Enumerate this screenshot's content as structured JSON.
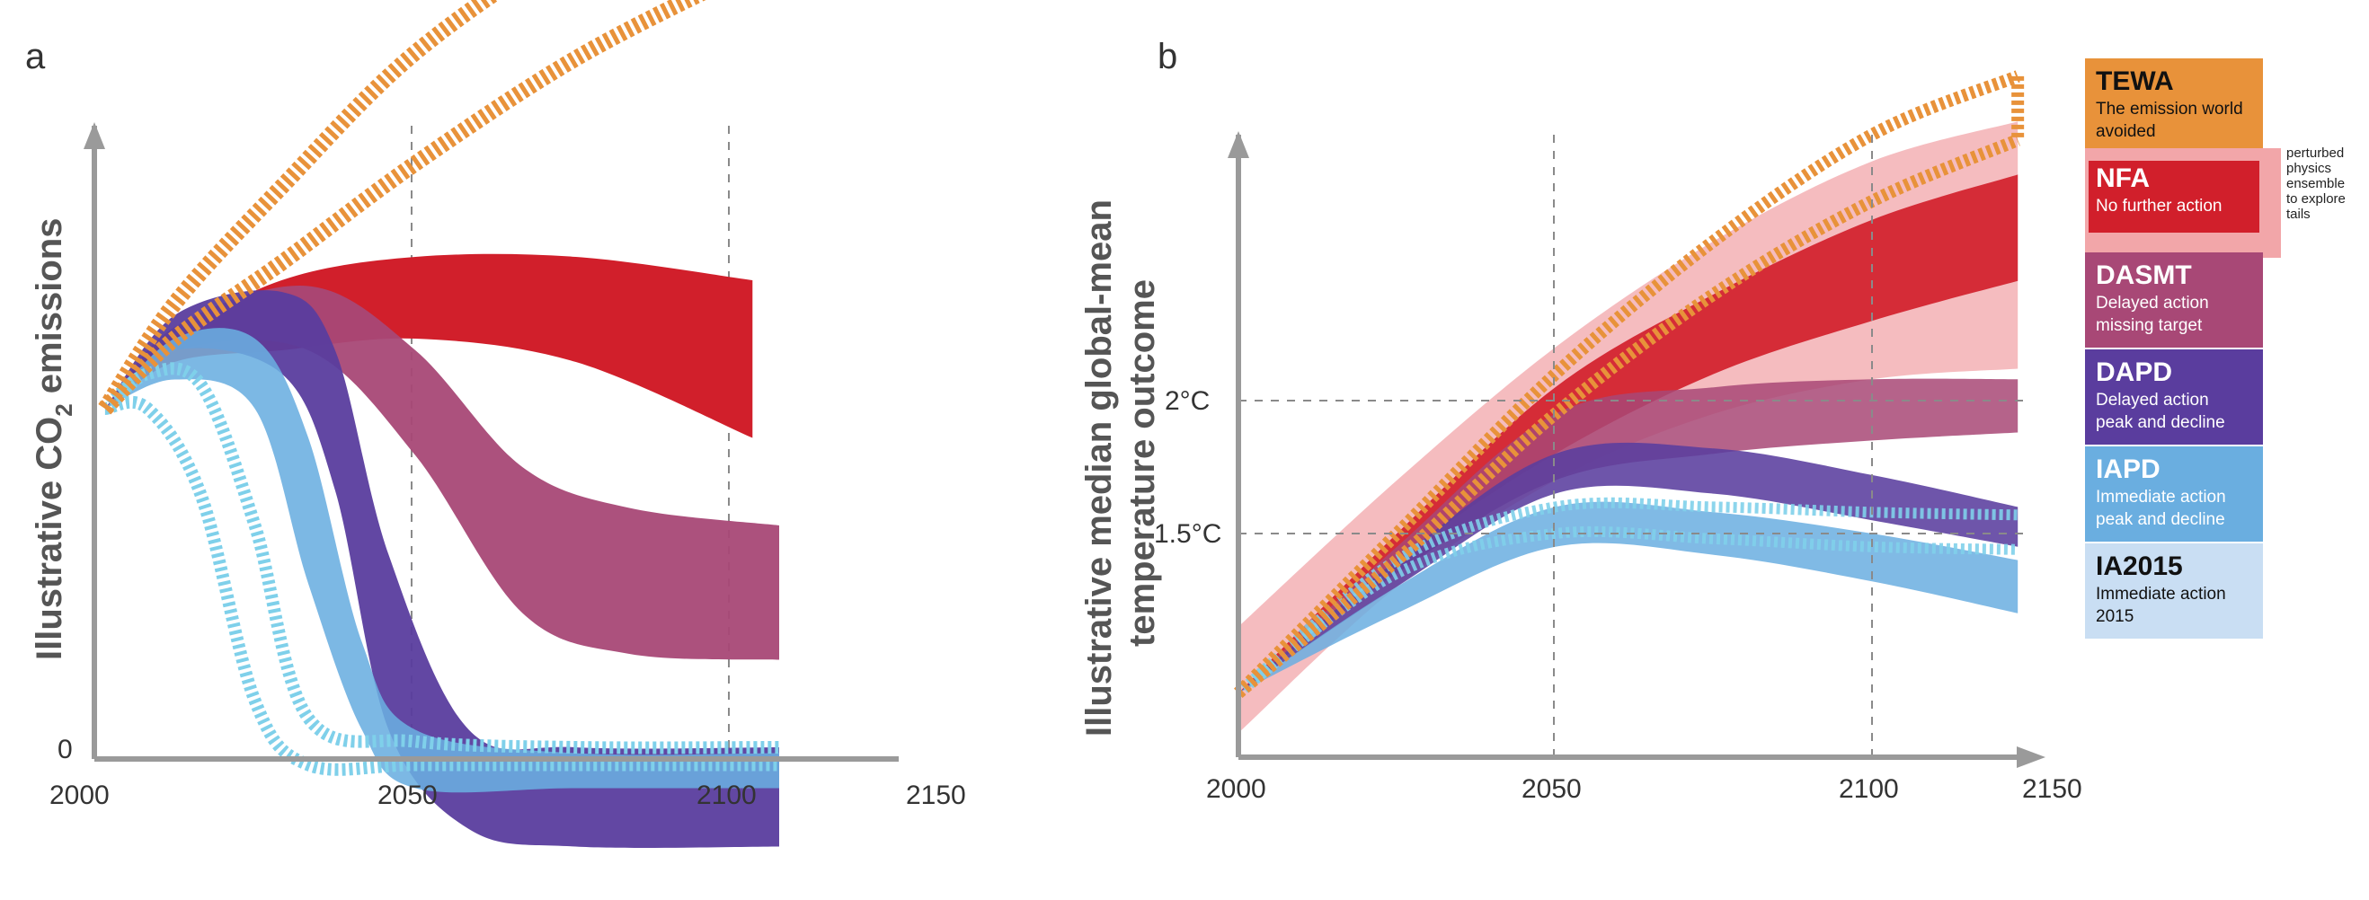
{
  "panels": {
    "a": {
      "letter": "a",
      "ylabel_main": "Illustrative CO",
      "ylabel_sub": "2",
      "ylabel_tail": " emissions",
      "zero_label": "0",
      "x_ticks": [
        "2000",
        "2050",
        "2100",
        "2150"
      ]
    },
    "b": {
      "letter": "b",
      "ylabel_line1": "Illustrative median global-mean",
      "ylabel_line2": "temperature outcome",
      "ref_labels": [
        "2°C",
        "1.5°C"
      ],
      "x_ticks": [
        "2000",
        "2050",
        "2100",
        "2150"
      ]
    }
  },
  "legend": [
    {
      "key": "TEWA",
      "title": "TEWA",
      "desc": [
        "The emission world",
        "avoided"
      ],
      "fill": "#e8923a",
      "text_color": "#111111"
    },
    {
      "key": "NFA",
      "title": "NFA",
      "desc": [
        "No further action"
      ],
      "fill": "#d11f2b",
      "text_color": "#ffffff"
    },
    {
      "key": "DASMT",
      "title": "DASMT",
      "desc": [
        "Delayed action",
        "missing target"
      ],
      "fill": "#a84876",
      "text_color": "#ffffff"
    },
    {
      "key": "DAPD",
      "title": "DAPD",
      "desc": [
        "Delayed action",
        "peak and decline"
      ],
      "fill": "#5a3d9e",
      "text_color": "#ffffff"
    },
    {
      "key": "IAPD",
      "title": "IAPD",
      "desc": [
        "Immediate action",
        "peak and decline"
      ],
      "fill": "#6aaee0",
      "text_color": "#ffffff"
    },
    {
      "key": "IA2015",
      "title": "IA2015",
      "desc": [
        "Immediate action",
        "2015"
      ],
      "fill": "#c9def3",
      "text_color": "#111111"
    }
  ],
  "perturbed_note": [
    "perturbed",
    "physics",
    "ensemble",
    "to explore",
    "tails"
  ],
  "colors": {
    "axis": "#9a9a9a",
    "grid": "#8a8a8a",
    "tewa": "#e8923a",
    "nfa": "#d11f2b",
    "nfa_pale": "#f2a6a9",
    "dasmt": "#a84876",
    "dapd": "#5a3d9e",
    "iapd": "#6aaee0",
    "ia2015": "#7fd0ea"
  },
  "chart_data": [
    {
      "type": "area",
      "panel": "a",
      "ylabel": "Illustrative CO2 emissions",
      "x_ticks": [
        2000,
        2050,
        2100,
        2150
      ],
      "xlim": [
        2000,
        2150
      ],
      "note": "Illustrative schematic; y has no numeric scale except 0",
      "series": [
        {
          "name": "TEWA",
          "x": [
            2002,
            2015,
            2035,
            2060,
            2090,
            2120,
            2123
          ],
          "lower": [
            0.6,
            0.72,
            0.85,
            1.02,
            1.2,
            1.34,
            1.34
          ],
          "upper": [
            0.6,
            0.78,
            0.98,
            1.21,
            1.4,
            1.54,
            1.54
          ]
        },
        {
          "name": "NFA",
          "x": [
            2002,
            2015,
            2035,
            2060,
            2090,
            2123
          ],
          "lower": [
            0.6,
            0.68,
            0.7,
            0.72,
            0.68,
            0.55
          ],
          "upper": [
            0.6,
            0.72,
            0.82,
            0.86,
            0.86,
            0.82
          ]
        },
        {
          "name": "DASMT",
          "x": [
            2002,
            2015,
            2040,
            2060,
            2080,
            2100,
            2128
          ],
          "lower": [
            0.6,
            0.7,
            0.7,
            0.52,
            0.25,
            0.18,
            0.17
          ],
          "upper": [
            0.6,
            0.74,
            0.81,
            0.7,
            0.5,
            0.43,
            0.4
          ]
        },
        {
          "name": "DAPD",
          "x": [
            2002,
            2015,
            2035,
            2045,
            2055,
            2070,
            2090,
            2128
          ],
          "lower": [
            0.6,
            0.7,
            0.66,
            0.46,
            0.05,
            -0.12,
            -0.15,
            -0.15
          ],
          "upper": [
            0.6,
            0.76,
            0.8,
            0.7,
            0.35,
            0.05,
            0.02,
            0.02
          ]
        },
        {
          "name": "IAPD",
          "x": [
            2002,
            2015,
            2030,
            2040,
            2050,
            2060,
            2090,
            2128
          ],
          "lower": [
            0.6,
            0.65,
            0.6,
            0.3,
            0.05,
            -0.05,
            -0.05,
            -0.05
          ],
          "upper": [
            0.6,
            0.72,
            0.72,
            0.55,
            0.2,
            0.05,
            0.01,
            0.01
          ]
        },
        {
          "name": "IA2015",
          "x": [
            2002,
            2010,
            2020,
            2030,
            2040,
            2060,
            2090,
            2128
          ],
          "lower": [
            0.6,
            0.6,
            0.45,
            0.1,
            -0.01,
            -0.01,
            -0.01,
            -0.01
          ],
          "upper": [
            0.6,
            0.66,
            0.64,
            0.4,
            0.07,
            0.03,
            0.02,
            0.02
          ]
        }
      ]
    },
    {
      "type": "area",
      "panel": "b",
      "ylabel": "Illustrative median global-mean temperature outcome",
      "x_ticks": [
        2000,
        2050,
        2100,
        2150
      ],
      "xlim": [
        2000,
        2150
      ],
      "reference_lines": [
        {
          "label": "2°C",
          "y": 2.0
        },
        {
          "label": "1.5°C",
          "y": 1.5
        }
      ],
      "series": [
        {
          "name": "TEWA",
          "x": [
            2000,
            2025,
            2050,
            2075,
            2100,
            2123
          ],
          "lower": [
            0.9,
            1.4,
            1.95,
            2.4,
            2.75,
            2.98
          ],
          "upper": [
            0.9,
            1.5,
            2.1,
            2.6,
            3.0,
            3.22
          ]
        },
        {
          "name": "NFA (perturbed ensemble)",
          "x": [
            2000,
            2025,
            2050,
            2075,
            2100,
            2123
          ],
          "lower": [
            0.75,
            1.3,
            1.7,
            1.95,
            2.08,
            2.12
          ],
          "upper": [
            1.15,
            1.7,
            2.2,
            2.6,
            2.9,
            3.05
          ]
        },
        {
          "name": "NFA",
          "x": [
            2000,
            2025,
            2050,
            2075,
            2100,
            2123
          ],
          "lower": [
            0.9,
            1.4,
            1.8,
            2.1,
            2.3,
            2.45
          ],
          "upper": [
            0.9,
            1.5,
            2.05,
            2.4,
            2.68,
            2.85
          ]
        },
        {
          "name": "DASMT",
          "x": [
            2000,
            2025,
            2050,
            2075,
            2100,
            2123
          ],
          "lower": [
            0.9,
            1.35,
            1.7,
            1.8,
            1.85,
            1.88
          ],
          "upper": [
            0.9,
            1.45,
            1.95,
            2.05,
            2.08,
            2.08
          ]
        },
        {
          "name": "DAPD",
          "x": [
            2000,
            2025,
            2050,
            2075,
            2100,
            2123
          ],
          "lower": [
            0.9,
            1.3,
            1.65,
            1.65,
            1.55,
            1.45
          ],
          "upper": [
            0.9,
            1.4,
            1.8,
            1.82,
            1.72,
            1.6
          ]
        },
        {
          "name": "IAPD",
          "x": [
            2000,
            2025,
            2050,
            2075,
            2100,
            2123
          ],
          "lower": [
            0.9,
            1.2,
            1.45,
            1.42,
            1.32,
            1.2
          ],
          "upper": [
            0.9,
            1.3,
            1.6,
            1.58,
            1.5,
            1.4
          ]
        },
        {
          "name": "IA2015",
          "x": [
            2000,
            2025,
            2050,
            2075,
            2100,
            2123
          ],
          "lower": [
            0.9,
            1.35,
            1.5,
            1.48,
            1.45,
            1.44
          ],
          "upper": [
            0.9,
            1.4,
            1.6,
            1.6,
            1.58,
            1.57
          ]
        }
      ]
    }
  ]
}
